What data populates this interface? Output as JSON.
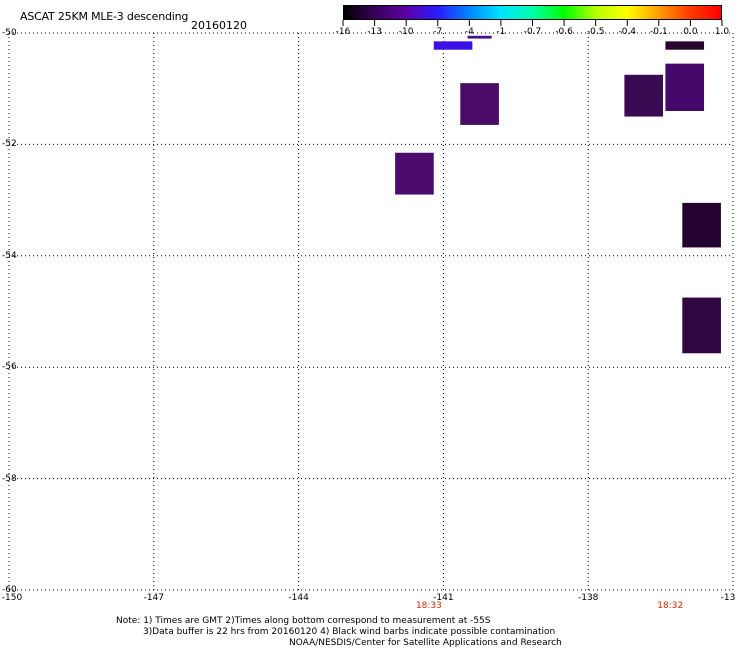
{
  "title": "ASCAT 25KM MLE-3 descending",
  "date": "20160120",
  "colorbar": {
    "labels": [
      "-16",
      "-13",
      "-10",
      "-7",
      "-4",
      "-1",
      "-0.7",
      "-0.6",
      "-0.5",
      "-0.4",
      "-0.1",
      "0.0",
      "1.0"
    ],
    "colors": [
      "#000000",
      "#3a005a",
      "#5a00a8",
      "#2a1cff",
      "#0088ff",
      "#00e4ff",
      "#00ffaa",
      "#00ff00",
      "#b4ff00",
      "#ffff00",
      "#ffa000",
      "#ff3c00",
      "#ff0000"
    ]
  },
  "axes": {
    "lon_ticks": [
      "-150",
      "-147",
      "-144",
      "-141",
      "-138",
      "-13"
    ],
    "lat_ticks": [
      "-50",
      "-52",
      "-54",
      "-56",
      "-58",
      "-60"
    ],
    "lon_range": [
      -150,
      -135
    ],
    "lat_range": [
      -60,
      -50
    ],
    "grid": true,
    "grid_style": "dotted"
  },
  "times": [
    {
      "label": "18:33",
      "lon": -141.3
    },
    {
      "label": "18:32",
      "lon": -136.3
    }
  ],
  "cells": [
    {
      "lon": -141.2,
      "lat": -50.15,
      "w": 0.8,
      "h": 0.15,
      "color": "#3a10e6"
    },
    {
      "lon": -140.5,
      "lat": -50.05,
      "w": 0.5,
      "h": 0.05,
      "color": "#4a108a"
    },
    {
      "lon": -140.65,
      "lat": -50.9,
      "w": 0.8,
      "h": 0.75,
      "color": "#4a0a68"
    },
    {
      "lon": -142.0,
      "lat": -52.15,
      "w": 0.8,
      "h": 0.75,
      "color": "#4a0a6e"
    },
    {
      "lon": -137.25,
      "lat": -50.75,
      "w": 0.8,
      "h": 0.75,
      "color": "#3a0a52"
    },
    {
      "lon": -136.4,
      "lat": -50.55,
      "w": 0.8,
      "h": 0.85,
      "color": "#44086a"
    },
    {
      "lon": -136.4,
      "lat": -50.15,
      "w": 0.8,
      "h": 0.15,
      "color": "#28062e"
    },
    {
      "lon": -136.05,
      "lat": -53.05,
      "w": 0.8,
      "h": 0.8,
      "color": "#250330"
    },
    {
      "lon": -136.05,
      "lat": -54.75,
      "w": 0.8,
      "h": 1.0,
      "color": "#300640"
    }
  ],
  "notes": [
    "Note: 1) Times are GMT 2)Times along bottom correspond to measurement at -55S",
    "3)Data buffer is 22 hrs from 20160120 4) Black wind barbs indicate possible contamination",
    "NOAA/NESDIS/Center for Satellite Applications and Research"
  ]
}
